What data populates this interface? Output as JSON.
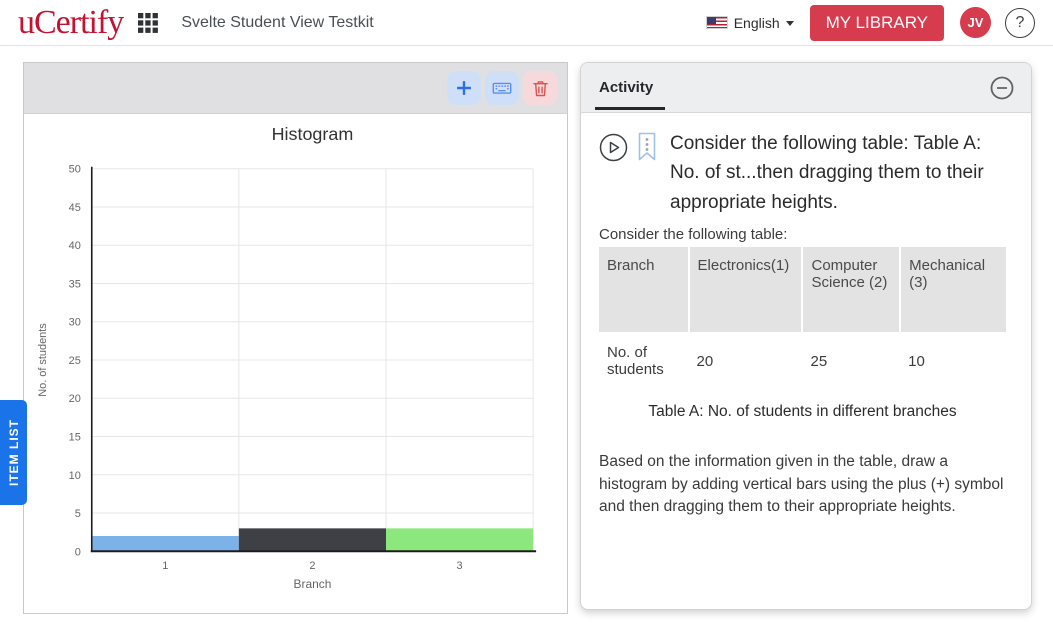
{
  "header": {
    "logo_text": "uCertify",
    "page_title": "Svelte Student View Testkit",
    "language_label": "English",
    "my_library_label": "MY LIBRARY",
    "avatar_initials": "JV",
    "help_label": "?",
    "brand_red": "#c41230",
    "button_red": "#d63b4e",
    "icons": [
      "apps-grid-icon",
      "us-flag-icon",
      "caret-down-icon",
      "help-icon"
    ]
  },
  "toolbar": {
    "icons": [
      "plus-icon",
      "keyboard-icon",
      "trash-icon"
    ],
    "plus_color": "#2b6fe3",
    "keyboard_color": "#5b8def",
    "trash_color": "#d9534f"
  },
  "item_list_tab": {
    "label": "ITEM LIST",
    "color": "#1a73e8"
  },
  "chart_data": {
    "type": "bar",
    "title": "Histogram",
    "xlabel": "Branch",
    "ylabel": "No. of students",
    "categories": [
      "1",
      "2",
      "3"
    ],
    "values": [
      2,
      3,
      3
    ],
    "bar_colors": [
      "#7db2e8",
      "#3f4045",
      "#8ce87d"
    ],
    "ylim": [
      0,
      50
    ],
    "ytick_step": 5,
    "grid": true,
    "legend": "none"
  },
  "activity_panel": {
    "tab_label": "Activity",
    "icons": [
      "play-icon",
      "bookmark-icon",
      "collapse-minus-icon"
    ],
    "question_title": "Consider the following table: Table A: No. of st...then dragging them to their appropriate heights.",
    "table_intro": "Consider the following table:",
    "table": {
      "headers": [
        "Branch",
        "Electronics(1)",
        "Computer Science (2)",
        "Mechanical (3)"
      ],
      "rows": [
        [
          "No. of students",
          "20",
          "25",
          "10"
        ]
      ]
    },
    "table_caption": "Table A: No. of students in different branches",
    "instructions": "Based on the information given in the table, draw a histogram by adding vertical bars using the plus (+) symbol and then dragging them to their appropriate heights."
  }
}
